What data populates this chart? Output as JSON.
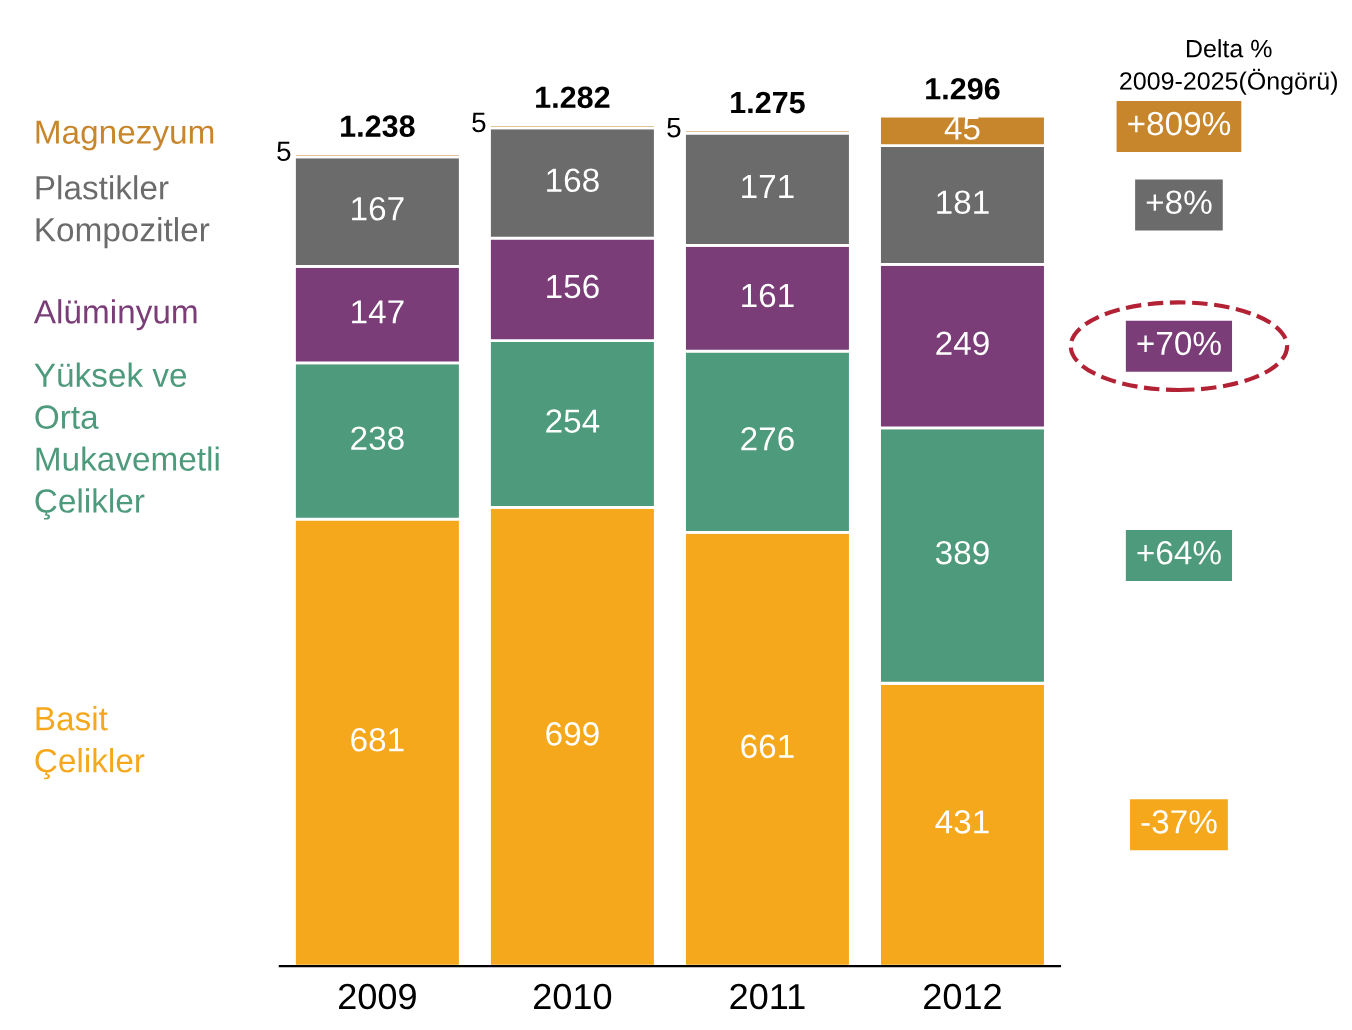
{
  "chart_data": {
    "type": "bar",
    "stacked": true,
    "data_labels": true,
    "legend": "left",
    "categories": [
      "2009",
      "2010",
      "2011",
      "2012"
    ],
    "series": [
      {
        "name": "Basit\nÇelikler",
        "color": "#f5a81c",
        "values": [
          681,
          699,
          661,
          431
        ]
      },
      {
        "name": "Yüksek ve\nOrta\nMukavemetli\nÇelikler",
        "color": "#4e9a7c",
        "values": [
          238,
          254,
          276,
          389
        ]
      },
      {
        "name": "Alüminyum",
        "color": "#7a3d78",
        "values": [
          147,
          156,
          161,
          249
        ]
      },
      {
        "name": "Plastikler\nKompozitler",
        "color": "#6b6b6b",
        "values": [
          167,
          168,
          171,
          181
        ]
      },
      {
        "name": "Magnezyum",
        "color": "#c8862c",
        "values": [
          5,
          5,
          5,
          45
        ]
      }
    ],
    "totals": [
      "1.238",
      "1.282",
      "1.275",
      "1.296"
    ],
    "annotations": [
      "Delta %\n2009-2025(Öngörü)",
      "+809%",
      "+8%",
      "+70%",
      "+64%",
      "-37%"
    ]
  }
}
